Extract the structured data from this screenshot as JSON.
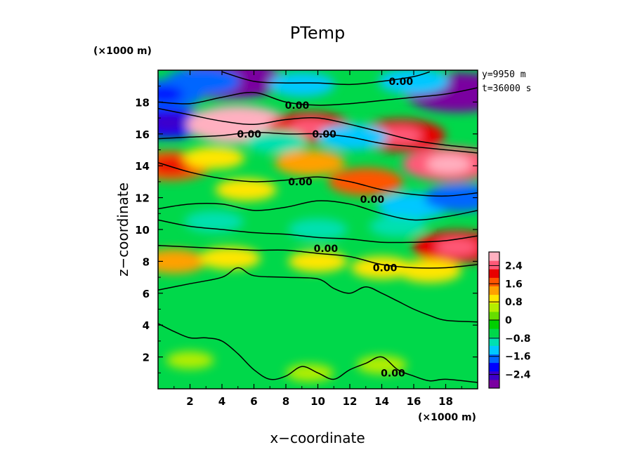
{
  "chart_data": {
    "type": "heatmap",
    "title": "PTemp",
    "xlabel": "x−coordinate",
    "ylabel": "z−coordinate",
    "x_unit_label": "(×1000 m)",
    "y_unit_label": "(×1000 m)",
    "xlim": [
      0,
      20
    ],
    "ylim": [
      0,
      20
    ],
    "x_ticks": [
      2,
      4,
      6,
      8,
      10,
      12,
      14,
      16,
      18
    ],
    "y_ticks": [
      2,
      4,
      6,
      8,
      10,
      12,
      14,
      16,
      18
    ],
    "annotations": [
      "y=9950 m",
      "t=36000 s"
    ],
    "contour_label": "0.00",
    "contour_label_positions": [
      {
        "x": 15.2,
        "y": 19.3
      },
      {
        "x": 8.7,
        "y": 17.8
      },
      {
        "x": 5.7,
        "y": 16.0
      },
      {
        "x": 10.4,
        "y": 16.0
      },
      {
        "x": 8.9,
        "y": 13.0
      },
      {
        "x": 13.4,
        "y": 11.9
      },
      {
        "x": 10.5,
        "y": 8.8
      },
      {
        "x": 14.2,
        "y": 7.6
      },
      {
        "x": 14.7,
        "y": 1.0
      }
    ],
    "colorbar": {
      "ticks": [
        "2.4",
        "1.6",
        "0.8",
        "0",
        "−0.8",
        "−1.6",
        "−2.4"
      ],
      "tick_values": [
        2.4,
        1.6,
        0.8,
        0,
        -0.8,
        -1.6,
        -2.4
      ],
      "range": [
        -3.0,
        3.0
      ],
      "colors": [
        "#7a00a0",
        "#3d00c8",
        "#0000ff",
        "#0066ff",
        "#00c8ff",
        "#00e0b0",
        "#00d84a",
        "#00d000",
        "#66dd00",
        "#b4ee00",
        "#ffe600",
        "#ffa000",
        "#ff5500",
        "#e80000",
        "#ff5a78",
        "#ffb0c0"
      ]
    },
    "field_features": [
      {
        "x": 4.5,
        "z": 19.4,
        "value": -3.0
      },
      {
        "x": 2.8,
        "z": 19.3,
        "value": -1.6
      },
      {
        "x": 9.0,
        "z": 19.1,
        "value": -1.2
      },
      {
        "x": 18.8,
        "z": 18.6,
        "value": -3.0
      },
      {
        "x": 16.0,
        "z": 19.3,
        "value": -1.4
      },
      {
        "x": 0.4,
        "z": 18.5,
        "value": -1.8
      },
      {
        "x": 0.7,
        "z": 16.7,
        "value": -2.0
      },
      {
        "x": 5.0,
        "z": 16.6,
        "value": 2.8
      },
      {
        "x": 9.5,
        "z": 16.4,
        "value": 2.0
      },
      {
        "x": 15.2,
        "z": 15.9,
        "value": 2.2
      },
      {
        "x": 12.2,
        "z": 15.8,
        "value": -1.4
      },
      {
        "x": 7.4,
        "z": 15.5,
        "value": -1.0
      },
      {
        "x": 18.2,
        "z": 14.1,
        "value": 2.4
      },
      {
        "x": 0.8,
        "z": 14.0,
        "value": 1.8
      },
      {
        "x": 3.5,
        "z": 14.5,
        "value": 1.0
      },
      {
        "x": 9.5,
        "z": 14.2,
        "value": 1.4
      },
      {
        "x": 13.0,
        "z": 13.0,
        "value": 1.6
      },
      {
        "x": 5.5,
        "z": 12.5,
        "value": 1.0
      },
      {
        "x": 16.0,
        "z": 11.5,
        "value": -1.5
      },
      {
        "x": 19.0,
        "z": 12.0,
        "value": -1.6
      },
      {
        "x": 3.5,
        "z": 10.5,
        "value": -0.9
      },
      {
        "x": 10.0,
        "z": 10.0,
        "value": -0.9
      },
      {
        "x": 15.0,
        "z": 10.2,
        "value": -0.8
      },
      {
        "x": 1.0,
        "z": 8.0,
        "value": 1.2
      },
      {
        "x": 4.5,
        "z": 8.2,
        "value": 1.0
      },
      {
        "x": 10.0,
        "z": 8.0,
        "value": 0.9
      },
      {
        "x": 18.7,
        "z": 8.9,
        "value": 2.2
      },
      {
        "x": 14.0,
        "z": 7.6,
        "value": 1.0
      },
      {
        "x": 17.0,
        "z": 7.4,
        "value": 1.1
      },
      {
        "x": 2.0,
        "z": 1.8,
        "value": 0.4
      },
      {
        "x": 14.0,
        "z": 1.5,
        "value": 0.5
      },
      {
        "x": 9.5,
        "z": 1.0,
        "value": 0.4
      }
    ],
    "zero_contours": [
      [
        [
          0,
          17.6
        ],
        [
          2,
          17.2
        ],
        [
          4,
          16.8
        ],
        [
          6,
          16.6
        ],
        [
          8,
          16.9
        ],
        [
          10,
          17.0
        ],
        [
          12,
          16.6
        ],
        [
          14,
          16.1
        ],
        [
          16,
          15.6
        ],
        [
          18,
          15.3
        ],
        [
          20,
          15.1
        ]
      ],
      [
        [
          0,
          15.7
        ],
        [
          2,
          15.8
        ],
        [
          4,
          15.9
        ],
        [
          6,
          16.1
        ],
        [
          8,
          16.0
        ],
        [
          10,
          16.0
        ],
        [
          12,
          15.8
        ],
        [
          14,
          15.4
        ],
        [
          16,
          15.2
        ],
        [
          18,
          15.0
        ],
        [
          20,
          14.8
        ]
      ],
      [
        [
          4,
          19.9
        ],
        [
          6,
          19.3
        ],
        [
          8,
          19.2
        ],
        [
          10,
          19.2
        ],
        [
          12,
          19.1
        ],
        [
          14,
          19.3
        ],
        [
          16,
          19.6
        ],
        [
          17,
          19.9
        ]
      ],
      [
        [
          0,
          18.0
        ],
        [
          2,
          17.9
        ],
        [
          4,
          18.3
        ],
        [
          6,
          18.6
        ],
        [
          8,
          18.0
        ],
        [
          10,
          17.8
        ],
        [
          12,
          17.9
        ],
        [
          14,
          18.1
        ],
        [
          16,
          18.3
        ],
        [
          18,
          18.5
        ],
        [
          20,
          18.9
        ]
      ],
      [
        [
          0,
          14.2
        ],
        [
          2,
          13.6
        ],
        [
          4,
          13.2
        ],
        [
          6,
          13.0
        ],
        [
          8,
          13.1
        ],
        [
          10,
          13.3
        ],
        [
          12,
          13.0
        ],
        [
          14,
          12.5
        ],
        [
          16,
          12.2
        ],
        [
          18,
          12.1
        ],
        [
          20,
          12.3
        ]
      ],
      [
        [
          0,
          11.3
        ],
        [
          2,
          11.6
        ],
        [
          4,
          11.6
        ],
        [
          6,
          11.2
        ],
        [
          8,
          11.4
        ],
        [
          10,
          11.8
        ],
        [
          12,
          11.6
        ],
        [
          14,
          11.0
        ],
        [
          16,
          10.6
        ],
        [
          18,
          10.8
        ],
        [
          20,
          11.2
        ]
      ],
      [
        [
          0,
          10.6
        ],
        [
          2,
          10.2
        ],
        [
          4,
          10.0
        ],
        [
          6,
          9.8
        ],
        [
          8,
          9.7
        ],
        [
          10,
          9.5
        ],
        [
          12,
          9.4
        ],
        [
          14,
          9.2
        ],
        [
          16,
          9.2
        ],
        [
          18,
          9.3
        ],
        [
          20,
          9.6
        ]
      ],
      [
        [
          0,
          9.0
        ],
        [
          2,
          8.9
        ],
        [
          4,
          8.8
        ],
        [
          6,
          8.7
        ],
        [
          8,
          8.7
        ],
        [
          10,
          8.5
        ],
        [
          12,
          8.3
        ],
        [
          14,
          7.8
        ],
        [
          16,
          7.6
        ],
        [
          18,
          7.6
        ],
        [
          20,
          7.8
        ]
      ],
      [
        [
          0,
          6.2
        ],
        [
          2,
          6.6
        ],
        [
          4,
          7.0
        ],
        [
          5,
          7.6
        ],
        [
          6,
          7.1
        ],
        [
          8,
          7.0
        ],
        [
          10,
          6.9
        ],
        [
          11,
          6.3
        ],
        [
          12,
          6.0
        ],
        [
          13,
          6.4
        ],
        [
          14,
          6.0
        ],
        [
          15,
          5.5
        ],
        [
          16,
          5.0
        ],
        [
          17,
          4.6
        ],
        [
          18,
          4.3
        ],
        [
          20,
          4.2
        ]
      ],
      [
        [
          0,
          4.1
        ],
        [
          1,
          3.6
        ],
        [
          2,
          3.2
        ],
        [
          3,
          3.2
        ],
        [
          4,
          3.0
        ],
        [
          5,
          2.2
        ],
        [
          6,
          1.2
        ],
        [
          7,
          0.6
        ],
        [
          8,
          0.8
        ],
        [
          9,
          1.4
        ],
        [
          10,
          1.0
        ],
        [
          11,
          0.6
        ],
        [
          12,
          1.2
        ],
        [
          13,
          1.6
        ],
        [
          14,
          2.0
        ],
        [
          15,
          1.2
        ],
        [
          16,
          0.8
        ],
        [
          17,
          0.5
        ],
        [
          18,
          0.6
        ],
        [
          20,
          0.4
        ]
      ]
    ]
  }
}
